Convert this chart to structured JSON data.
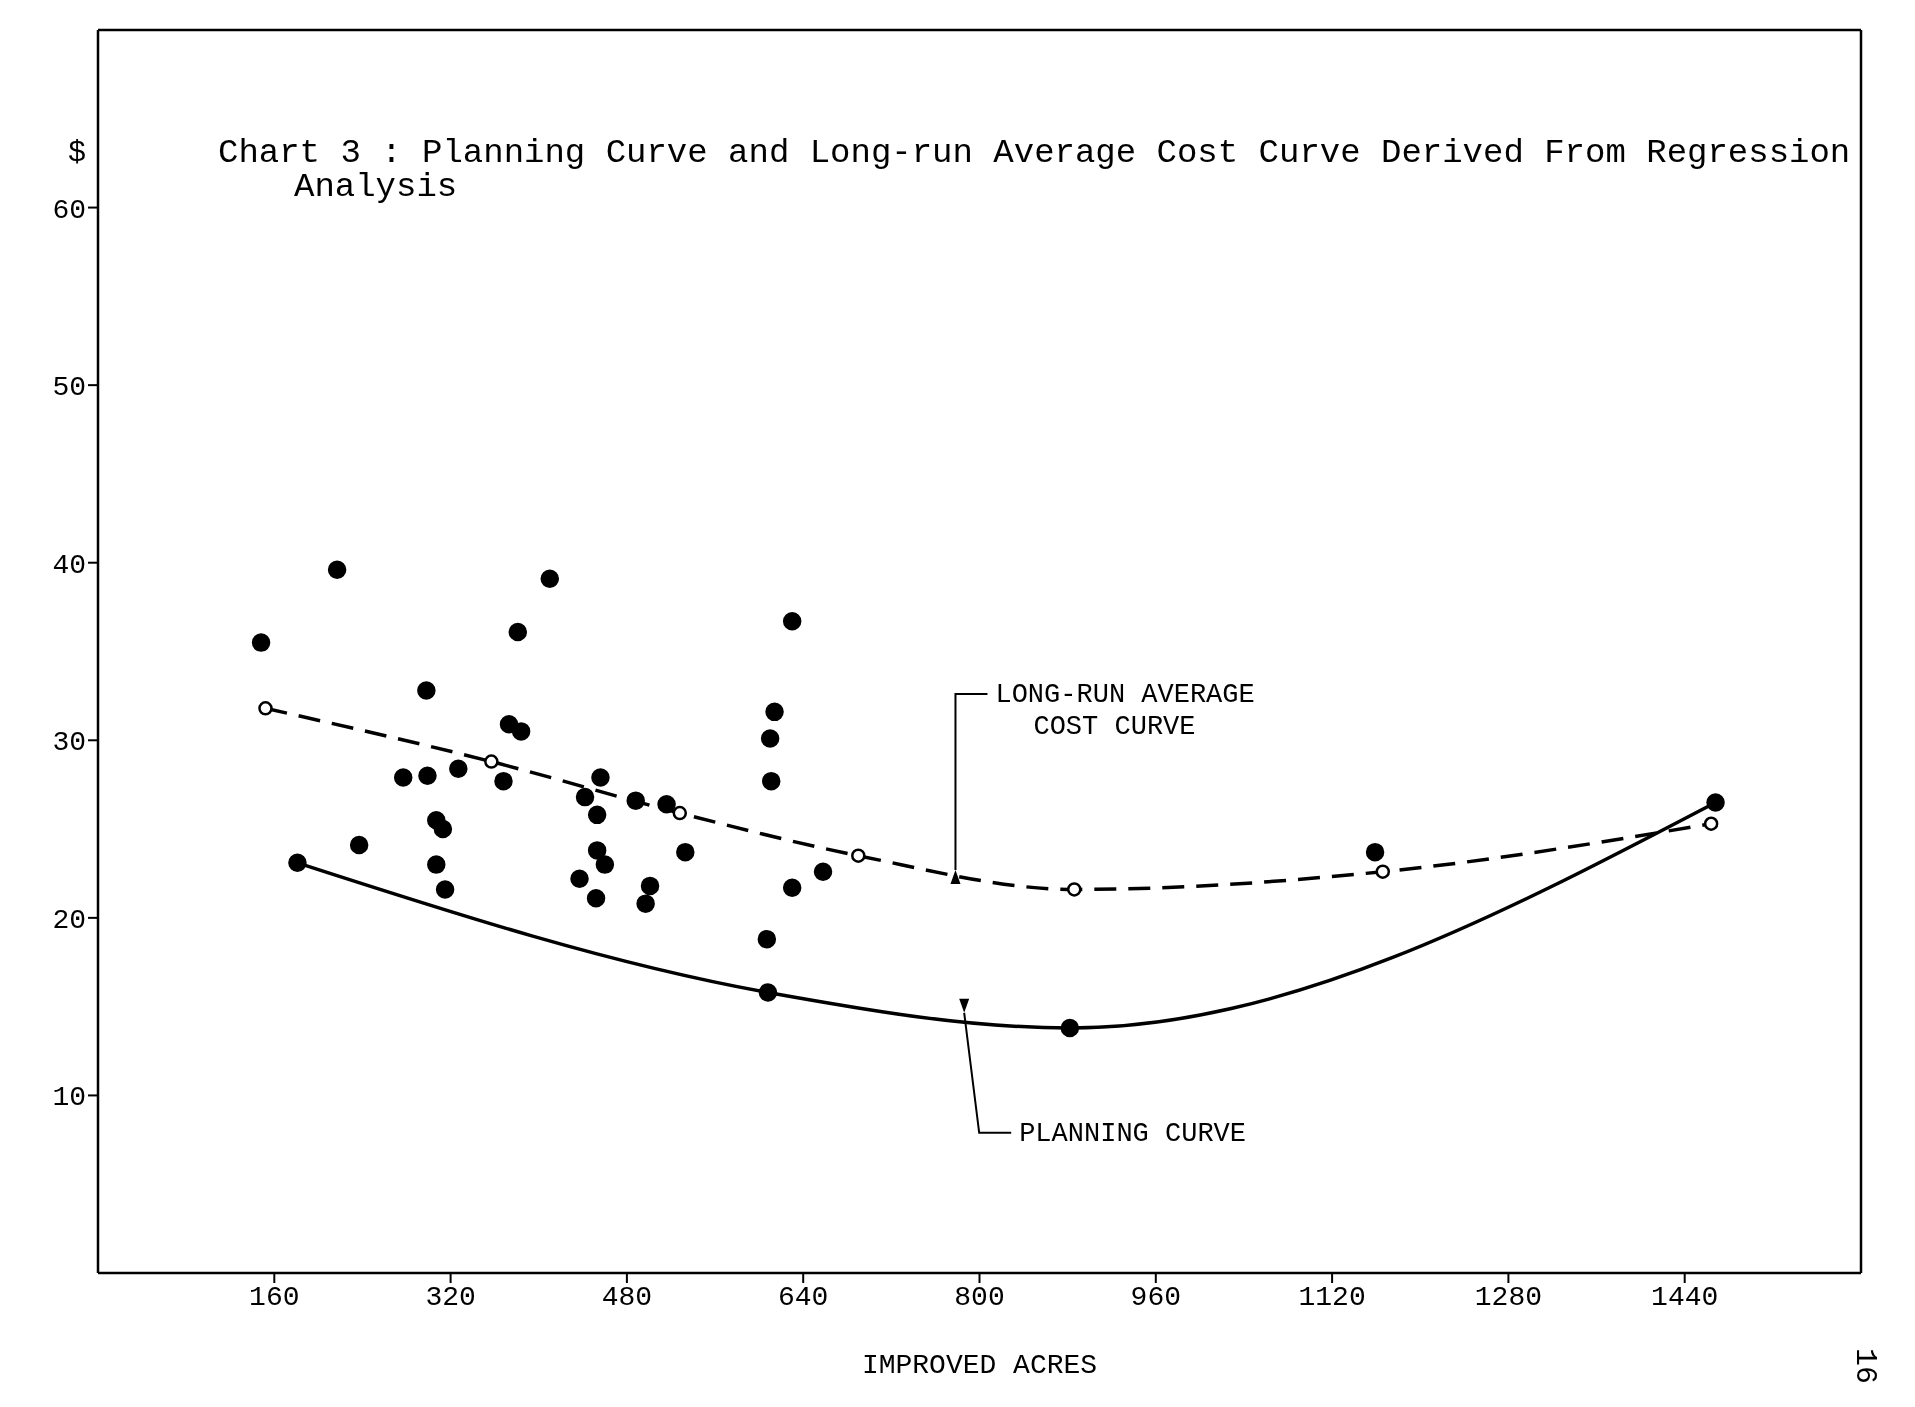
{
  "chart_data": {
    "type": "scatter",
    "title": "Chart 3 : Planning Curve and Long-run Average Cost Curve Derived From Regression Analysis",
    "xlabel": "IMPROVED ACRES",
    "ylabel": "$",
    "xlim": [
      0,
      1600
    ],
    "ylim": [
      0,
      70
    ],
    "xticks": [
      160,
      320,
      480,
      640,
      800,
      960,
      1120,
      1280,
      1440
    ],
    "yticks": [
      10,
      20,
      30,
      40,
      50,
      60
    ],
    "annotations": [
      "16"
    ],
    "series": [
      {
        "color": "#000000",
        "marker": "circle",
        "x": [
          148,
          217,
          237,
          277,
          298,
          299,
          307,
          307,
          313,
          315,
          327,
          368,
          373,
          381,
          384,
          410,
          437,
          442,
          452,
          453,
          453,
          456,
          460,
          488,
          497,
          501,
          516,
          533,
          607,
          610,
          611,
          614,
          630,
          630,
          658,
          1159
        ],
        "values": [
          35.5,
          39.6,
          24.1,
          27.9,
          32.8,
          28.0,
          25.5,
          23.0,
          25.0,
          21.6,
          28.4,
          27.7,
          30.9,
          36.1,
          30.5,
          39.1,
          22.2,
          26.8,
          21.1,
          23.8,
          25.8,
          27.9,
          23.0,
          26.6,
          20.8,
          21.8,
          26.4,
          23.7,
          18.8,
          30.1,
          27.7,
          31.6,
          36.7,
          21.7,
          22.6,
          23.7
        ]
      },
      {
        "type": "line",
        "name": "PLANNING CURVE",
        "color": "#000000",
        "marker": "circle",
        "line_style": "solid",
        "x": [
          181,
          608,
          882,
          1468
        ],
        "values": [
          23.1,
          15.8,
          13.8,
          26.5
        ]
      },
      {
        "type": "line",
        "name": "LONG-RUN AVERAGE COST CURVE",
        "color": "#000000",
        "marker": "circle",
        "line_style": "dashed",
        "x": [
          152,
          357,
          528,
          690,
          886,
          1166,
          1464
        ],
        "values": [
          31.8,
          28.8,
          25.9,
          23.5,
          21.6,
          22.6,
          25.3
        ]
      }
    ]
  }
}
